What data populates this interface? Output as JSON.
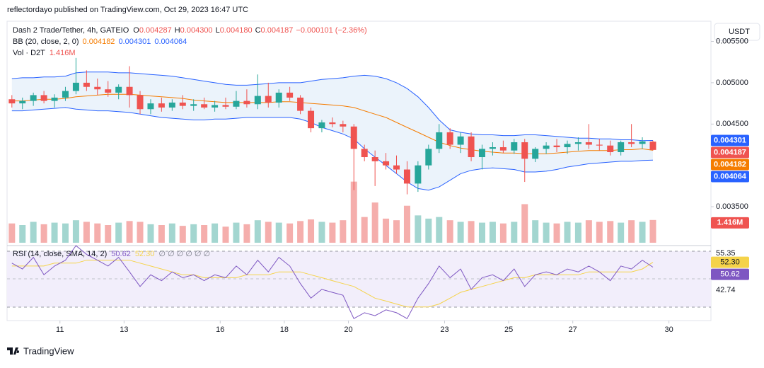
{
  "chart_data": {
    "type": "candlestick",
    "header": "reflectordayo published on TradingView.com, Oct 29, 2023 16:47 UTC",
    "currency": "USDT",
    "legend": {
      "symbol": "Dash 2 Trade/Tether, 4h, GATEIO",
      "ohlc": [
        {
          "label": "O",
          "value": "0.004287"
        },
        {
          "label": "H",
          "value": "0.004300"
        },
        {
          "label": "L",
          "value": "0.004180"
        },
        {
          "label": "C",
          "value": "0.004187"
        }
      ],
      "change": "−0.000101 (−2.36%)",
      "bb": {
        "label": "BB (20, close, 2, 0)",
        "values": [
          {
            "value": "0.004182",
            "color": "#f57c00"
          },
          {
            "value": "0.004301",
            "color": "#2962ff"
          },
          {
            "value": "0.004064",
            "color": "#2962ff"
          }
        ]
      },
      "vol": {
        "label": "Vol · D2T",
        "value": "1.416M"
      }
    },
    "colors": {
      "up": "#26a69a",
      "down": "#ef5350",
      "up_vol": "#a3d6d0",
      "down_vol": "#f5aeac",
      "bb_band": "#2962ff",
      "bb_basis": "#f57c00",
      "bb_fill": "#e6f0fa",
      "rsi": "#7e57c2",
      "rsi_sma": "#f5d34a"
    },
    "x": [
      9.5,
      9.83,
      10.17,
      10.5,
      10.83,
      11.17,
      11.5,
      11.83,
      12.17,
      12.5,
      12.83,
      13.17,
      13.5,
      13.83,
      14.17,
      14.5,
      14.83,
      15.17,
      15.5,
      15.83,
      16.17,
      16.5,
      16.83,
      17.17,
      17.5,
      17.83,
      18.17,
      18.5,
      18.83,
      19.17,
      19.5,
      19.83,
      20.17,
      20.5,
      20.83,
      21.17,
      21.5,
      21.83,
      22.17,
      22.5,
      22.83,
      23.17,
      23.5,
      23.83,
      24.17,
      24.5,
      24.83,
      25.17,
      25.5,
      25.83,
      26.17,
      26.5,
      26.83,
      27.17,
      27.5,
      27.83,
      28.17,
      28.5,
      28.83,
      29.17,
      29.5
    ],
    "xlim": [
      9.35,
      31.2
    ],
    "xticks": [
      11,
      13,
      16,
      18,
      20,
      23,
      25,
      27,
      30
    ],
    "open": [
      0.0048,
      0.00475,
      0.00478,
      0.00485,
      0.00478,
      0.00482,
      0.0049,
      0.005,
      0.00495,
      0.00492,
      0.00488,
      0.00495,
      0.00485,
      0.00468,
      0.00475,
      0.0047,
      0.00476,
      0.00472,
      0.00474,
      0.0047,
      0.00473,
      0.00471,
      0.00478,
      0.00474,
      0.00484,
      0.00476,
      0.00488,
      0.00482,
      0.00466,
      0.00445,
      0.00452,
      0.0045,
      0.00447,
      0.0042,
      0.0041,
      0.00405,
      0.004,
      0.00395,
      0.00378,
      0.004,
      0.0042,
      0.0044,
      0.00425,
      0.00435,
      0.0041,
      0.0042,
      0.00422,
      0.00418,
      0.00428,
      0.00408,
      0.0042,
      0.00424,
      0.00422,
      0.00426,
      0.00428,
      0.00425,
      0.00424,
      0.00416,
      0.00428,
      0.00426,
      0.004287
    ],
    "high": [
      0.00485,
      0.00482,
      0.00488,
      0.0049,
      0.00486,
      0.00495,
      0.0053,
      0.00515,
      0.00505,
      0.00502,
      0.00498,
      0.0052,
      0.0049,
      0.0048,
      0.00482,
      0.0048,
      0.00485,
      0.0048,
      0.00482,
      0.00478,
      0.00482,
      0.0049,
      0.00492,
      0.0051,
      0.005,
      0.00492,
      0.00495,
      0.00485,
      0.0047,
      0.00455,
      0.00458,
      0.00454,
      0.0045,
      0.00425,
      0.00418,
      0.00415,
      0.00412,
      0.00405,
      0.00405,
      0.00425,
      0.0045,
      0.00445,
      0.0044,
      0.0044,
      0.00425,
      0.00428,
      0.0043,
      0.00432,
      0.00432,
      0.00422,
      0.00428,
      0.00432,
      0.0043,
      0.00434,
      0.0045,
      0.00432,
      0.0043,
      0.0043,
      0.0045,
      0.00434,
      0.0043
    ],
    "low": [
      0.0047,
      0.00468,
      0.00472,
      0.00475,
      0.0047,
      0.00478,
      0.00486,
      0.0049,
      0.00485,
      0.00483,
      0.0048,
      0.0047,
      0.00462,
      0.00462,
      0.00465,
      0.00466,
      0.00468,
      0.00466,
      0.00468,
      0.00465,
      0.00468,
      0.00468,
      0.0047,
      0.00468,
      0.0047,
      0.0047,
      0.00478,
      0.00462,
      0.0044,
      0.0044,
      0.00446,
      0.0044,
      0.0037,
      0.00405,
      0.00375,
      0.00395,
      0.0039,
      0.00365,
      0.00368,
      0.00395,
      0.00415,
      0.0042,
      0.00415,
      0.00405,
      0.00395,
      0.00412,
      0.00415,
      0.00414,
      0.0038,
      0.00404,
      0.00414,
      0.00416,
      0.00414,
      0.00418,
      0.0042,
      0.00418,
      0.00412,
      0.00412,
      0.00422,
      0.0042,
      0.00418
    ],
    "close": [
      0.00475,
      0.00478,
      0.00485,
      0.00478,
      0.00482,
      0.0049,
      0.005,
      0.00495,
      0.00492,
      0.00488,
      0.00495,
      0.00485,
      0.00468,
      0.00475,
      0.0047,
      0.00476,
      0.00472,
      0.00474,
      0.0047,
      0.00473,
      0.00471,
      0.00478,
      0.00474,
      0.00484,
      0.00476,
      0.00488,
      0.00482,
      0.00466,
      0.00445,
      0.00452,
      0.0045,
      0.00447,
      0.0042,
      0.0041,
      0.00405,
      0.004,
      0.00395,
      0.00378,
      0.004,
      0.0042,
      0.0044,
      0.00425,
      0.00435,
      0.0041,
      0.0042,
      0.00422,
      0.00418,
      0.00428,
      0.00408,
      0.0042,
      0.00424,
      0.00422,
      0.00426,
      0.00428,
      0.00425,
      0.00424,
      0.00416,
      0.00428,
      0.00426,
      0.00429,
      0.004187
    ],
    "volume": [
      1200000,
      1100000,
      1300000,
      1150000,
      1250000,
      1200000,
      1400000,
      1300000,
      1200000,
      1100000,
      1250000,
      1350000,
      1300000,
      1150000,
      1100000,
      1200000,
      1050000,
      1150000,
      1100000,
      1200000,
      1000000,
      1250000,
      1150000,
      1400000,
      1300000,
      1250000,
      1200000,
      1350000,
      1450000,
      1300000,
      1250000,
      1400000,
      3800000,
      1600000,
      2500000,
      1500000,
      1400000,
      2300000,
      1700000,
      1500000,
      1600000,
      1400000,
      1300000,
      1350000,
      1250000,
      1300000,
      1200000,
      1300000,
      2400000,
      1400000,
      1250000,
      1200000,
      1300000,
      1250000,
      1400000,
      1300000,
      1350000,
      1250000,
      1400000,
      1300000,
      1416000
    ],
    "vlim": [
      0,
      3300000
    ],
    "ylim": [
      0.003047,
      0.005744
    ],
    "yticks": [
      {
        "value": 0.0035,
        "label": "0.003500"
      },
      {
        "value": 0.0045,
        "label": "0.004500"
      },
      {
        "value": 0.005,
        "label": "0.005000"
      },
      {
        "value": 0.0055,
        "label": "0.005500"
      }
    ],
    "bb": {
      "upper": [
        0.00505,
        0.00506,
        0.00506,
        0.00507,
        0.00507,
        0.00508,
        0.00512,
        0.00513,
        0.00513,
        0.00513,
        0.00512,
        0.00512,
        0.00511,
        0.0051,
        0.00509,
        0.00508,
        0.00506,
        0.00504,
        0.00502,
        0.005,
        0.00498,
        0.00497,
        0.00497,
        0.00498,
        0.00499,
        0.005,
        0.005,
        0.005,
        0.00502,
        0.00504,
        0.00505,
        0.00506,
        0.00508,
        0.00509,
        0.00508,
        0.00505,
        0.005,
        0.00493,
        0.00483,
        0.0047,
        0.00455,
        0.00443,
        0.0044,
        0.00438,
        0.00437,
        0.00437,
        0.00436,
        0.00436,
        0.00437,
        0.00437,
        0.00436,
        0.00435,
        0.00434,
        0.00433,
        0.00433,
        0.00432,
        0.00432,
        0.00431,
        0.00431,
        0.0043,
        0.004301
      ],
      "basis": [
        0.00478,
        0.00478,
        0.00479,
        0.0048,
        0.0048,
        0.00481,
        0.00483,
        0.00484,
        0.00485,
        0.00486,
        0.00486,
        0.00486,
        0.00485,
        0.00484,
        0.00483,
        0.00482,
        0.00481,
        0.00479,
        0.00478,
        0.00477,
        0.00476,
        0.00476,
        0.00476,
        0.00476,
        0.00476,
        0.00477,
        0.00477,
        0.00476,
        0.00475,
        0.00474,
        0.00473,
        0.00472,
        0.0047,
        0.00466,
        0.00462,
        0.00458,
        0.00452,
        0.00446,
        0.0044,
        0.00434,
        0.00428,
        0.00424,
        0.00421,
        0.00419,
        0.00417,
        0.00416,
        0.00415,
        0.00415,
        0.00414,
        0.00414,
        0.00414,
        0.00415,
        0.00416,
        0.00417,
        0.00418,
        0.00418,
        0.00418,
        0.00419,
        0.00419,
        0.0042,
        0.004182
      ],
      "lower": [
        0.00466,
        0.00466,
        0.00467,
        0.00468,
        0.00469,
        0.0047,
        0.00468,
        0.00467,
        0.00466,
        0.00466,
        0.00465,
        0.00464,
        0.00462,
        0.0046,
        0.00458,
        0.00457,
        0.00456,
        0.00455,
        0.00455,
        0.00456,
        0.00456,
        0.00457,
        0.00458,
        0.00458,
        0.00458,
        0.00458,
        0.00458,
        0.00456,
        0.00452,
        0.00446,
        0.00442,
        0.00438,
        0.00432,
        0.0042,
        0.0041,
        0.004,
        0.0039,
        0.0038,
        0.00372,
        0.0037,
        0.00374,
        0.00382,
        0.0039,
        0.00394,
        0.00396,
        0.00397,
        0.00396,
        0.00395,
        0.00392,
        0.00392,
        0.00393,
        0.00395,
        0.00398,
        0.004,
        0.00402,
        0.00403,
        0.00404,
        0.00405,
        0.00405,
        0.00406,
        0.004064
      ]
    },
    "price_labels": [
      {
        "value": 0.004301,
        "label": "0.004301",
        "color": "#2962ff"
      },
      {
        "value": 0.004187,
        "label": "0.004187",
        "color": "#ef5350"
      },
      {
        "value": 0.004182,
        "label": "0.004182",
        "color": "#f57c00"
      },
      {
        "value": 0.004064,
        "label": "0.004064",
        "color": "#2962ff"
      }
    ],
    "volume_label": {
      "value": 1416000,
      "label": "1.416M",
      "color": "#ef5350"
    },
    "rsi": {
      "label": "RSI (14, close, SMA, 14, 2)",
      "value_text": "50.62",
      "sma_text": "52.30",
      "empty_text": "∅ ∅ ∅ ∅ ∅ ∅",
      "values": [
        52,
        50,
        54,
        48,
        51,
        53,
        58,
        55,
        53,
        51,
        54,
        49,
        44,
        48,
        46,
        49,
        47,
        48,
        46,
        48,
        47,
        51,
        48,
        53,
        49,
        54,
        51,
        45,
        40,
        43,
        42,
        41,
        33,
        35,
        34,
        36,
        35,
        33,
        40,
        45,
        51,
        47,
        50,
        43,
        47,
        48,
        46,
        50,
        44,
        48,
        49,
        48,
        50,
        49,
        51,
        49,
        46,
        51,
        50,
        53,
        50.62
      ],
      "sma": [
        51,
        51,
        51,
        51,
        52,
        52,
        52,
        53,
        53,
        53,
        53,
        53,
        52,
        51,
        50,
        49,
        48,
        48,
        47,
        47,
        47,
        47,
        48,
        48,
        48,
        49,
        49,
        49,
        48,
        47,
        46,
        45,
        44,
        42,
        40,
        39,
        38,
        37,
        37,
        37,
        38,
        40,
        42,
        43,
        44,
        45,
        46,
        47,
        47,
        48,
        48,
        48,
        48,
        48,
        49,
        49,
        49,
        49,
        49,
        50,
        52.3
      ],
      "ylim": [
        32.56,
        57.29
      ],
      "yticks": [
        42.74,
        55.35
      ],
      "labels": [
        {
          "value": 52.3,
          "label": "52.30",
          "color": "#f5d34a"
        },
        {
          "value": 50.62,
          "label": "50.62",
          "color": "#7e57c2"
        }
      ]
    },
    "footer": "TradingView"
  }
}
